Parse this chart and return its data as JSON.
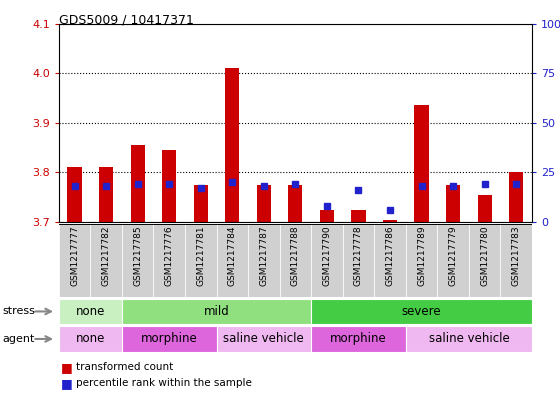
{
  "title": "GDS5009 / 10417371",
  "samples": [
    "GSM1217777",
    "GSM1217782",
    "GSM1217785",
    "GSM1217776",
    "GSM1217781",
    "GSM1217784",
    "GSM1217787",
    "GSM1217788",
    "GSM1217790",
    "GSM1217778",
    "GSM1217786",
    "GSM1217789",
    "GSM1217779",
    "GSM1217780",
    "GSM1217783"
  ],
  "transformed_counts": [
    3.81,
    3.81,
    3.855,
    3.845,
    3.775,
    4.01,
    3.775,
    3.775,
    3.725,
    3.725,
    3.705,
    3.935,
    3.775,
    3.755,
    3.8
  ],
  "percentile_ranks": [
    18,
    18,
    19,
    19,
    17,
    20,
    18,
    19,
    8,
    16,
    6,
    18,
    18,
    19,
    19
  ],
  "ymin": 3.7,
  "ymax": 4.1,
  "yticks": [
    3.7,
    3.8,
    3.9,
    4.0,
    4.1
  ],
  "right_yticks": [
    0,
    25,
    50,
    75,
    100
  ],
  "stress_groups": [
    {
      "label": "none",
      "start": 0,
      "end": 2,
      "color": "#c8f0c0"
    },
    {
      "label": "mild",
      "start": 2,
      "end": 8,
      "color": "#90e080"
    },
    {
      "label": "severe",
      "start": 8,
      "end": 15,
      "color": "#44cc44"
    }
  ],
  "agent_groups": [
    {
      "label": "none",
      "start": 0,
      "end": 2,
      "color": "#f0b8f0"
    },
    {
      "label": "morphine",
      "start": 2,
      "end": 5,
      "color": "#dd66dd"
    },
    {
      "label": "saline vehicle",
      "start": 5,
      "end": 8,
      "color": "#f0b8f0"
    },
    {
      "label": "morphine",
      "start": 8,
      "end": 11,
      "color": "#dd66dd"
    },
    {
      "label": "saline vehicle",
      "start": 11,
      "end": 15,
      "color": "#f0b8f0"
    }
  ],
  "bar_color": "#cc0000",
  "percentile_color": "#2222cc",
  "bar_width": 0.45,
  "bg_color": "#ffffff",
  "tick_label_color_left": "#cc0000",
  "tick_label_color_right": "#2222cc",
  "xlabel_bg": "#d0d0d0"
}
